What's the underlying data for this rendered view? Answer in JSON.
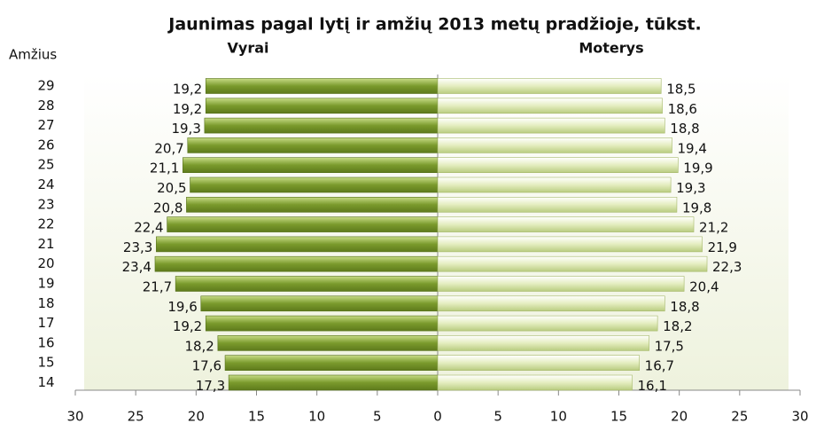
{
  "chart_data": {
    "type": "pyramid",
    "title": "Jaunimas pagal lytį ir amžių 2013 metų pradžioje, tūkst.",
    "y_label": "Amžius",
    "categories": [
      "29",
      "28",
      "27",
      "26",
      "25",
      "24",
      "23",
      "22",
      "21",
      "20",
      "19",
      "18",
      "17",
      "16",
      "15",
      "14"
    ],
    "series": [
      {
        "name": "Vyrai",
        "color": "#7a9a2c",
        "side": "left",
        "values": [
          19.2,
          19.2,
          19.3,
          20.7,
          21.1,
          20.5,
          20.8,
          22.4,
          23.3,
          23.4,
          21.7,
          19.6,
          19.2,
          18.2,
          17.6,
          17.3
        ],
        "value_labels": [
          "19,2",
          "19,2",
          "19,3",
          "20,7",
          "21,1",
          "20,5",
          "20,8",
          "22,4",
          "23,3",
          "23,4",
          "21,7",
          "19,6",
          "19,2",
          "18,2",
          "17,6",
          "17,3"
        ]
      },
      {
        "name": "Moterys",
        "color": "#e4edbf",
        "side": "right",
        "values": [
          18.5,
          18.6,
          18.8,
          19.4,
          19.9,
          19.3,
          19.8,
          21.2,
          21.9,
          22.3,
          20.4,
          18.8,
          18.2,
          17.5,
          16.7,
          16.1
        ],
        "value_labels": [
          "18,5",
          "18,6",
          "18,8",
          "19,4",
          "19,9",
          "19,3",
          "19,8",
          "21,2",
          "21,9",
          "22,3",
          "20,4",
          "18,8",
          "18,2",
          "17,5",
          "16,7",
          "16,1"
        ]
      }
    ],
    "xlim": [
      -30,
      30
    ],
    "xticks": [
      {
        "value": -30,
        "label": "30"
      },
      {
        "value": -25,
        "label": "25"
      },
      {
        "value": -20,
        "label": "20"
      },
      {
        "value": -15,
        "label": "15"
      },
      {
        "value": -10,
        "label": "10"
      },
      {
        "value": -5,
        "label": "5"
      },
      0,
      5,
      10,
      15,
      20,
      25,
      30
    ]
  }
}
